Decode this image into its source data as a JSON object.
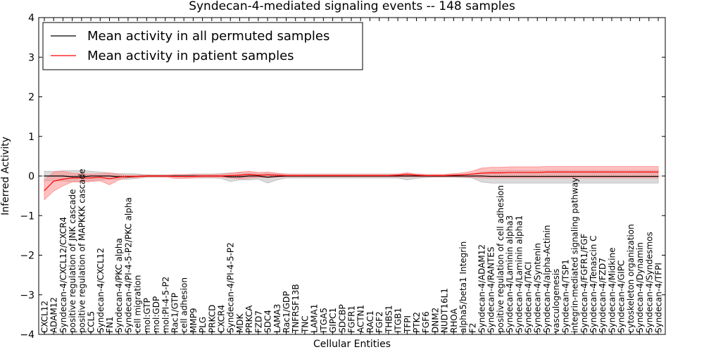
{
  "chart_data": {
    "type": "line",
    "title": "Syndecan-4-mediated signaling events -- 148 samples",
    "xlabel": "Cellular Entities",
    "ylabel": "Inferred Activity",
    "ylim": [
      -4,
      4
    ],
    "yticks": [
      -4,
      -3,
      -2,
      -1,
      0,
      1,
      2,
      3,
      4
    ],
    "ytick_labels": [
      "−4",
      "−3",
      "−2",
      "−1",
      "0",
      "1",
      "2",
      "3",
      "4"
    ],
    "legend_position": "top-left",
    "categories": [
      "CXCL12",
      "ADAM12",
      "Syndecan-4/CXCL12/CXCR4",
      "positive regulation of JNK cascade",
      "positive regulation of MAPKKK cascade",
      "CCL5",
      "Syndecan-4/CXCL12",
      "FN1",
      "Syndecan-4/PKC alpha",
      "Syndecan-4/PI-4-5-P2/PKC alpha",
      "cell migration",
      "mol:GTP",
      "mol:GDP",
      "mol:PI-4-5-P2",
      "Rac1/GTP",
      "cell adhesion",
      "MMP9",
      "PLG",
      "PRKCD",
      "CXCR4",
      "Syndecan-4/PI-4-5-P2",
      "MDK",
      "PRKCA",
      "FZD7",
      "SDC4",
      "LAMA3",
      "Rac1/GDP",
      "TNFRSF13B",
      "TNC",
      "LAMA1",
      "ITGA5",
      "GIPC1",
      "SDCBP",
      "FGFR1",
      "ACTN1",
      "RAC1",
      "FGF2",
      "THBS1",
      "ITGB1",
      "TFPI",
      "PTK2",
      "FGF6",
      "DNM2",
      "NUDT16L1",
      "RHOA",
      "alpha5/beta1 Integrin",
      "F2",
      "Syndecan-4/ADAM12",
      "Syndecan-4/RANTES",
      "positive regulation of cell adhesion",
      "Syndecan-4/Laminin alpha3",
      "Syndecan-4/Laminin alpha1",
      "Syndecan-4/TACI",
      "Syndecan-4/Syntenin",
      "Syndecan-4/alpha-Actinin",
      "vasculogenesis",
      "Syndecan-4/TSP1",
      "integrin-mediated signaling pathway",
      "Syndecan-4/FGFR1/FGF",
      "Syndecan-4/Tenascin C",
      "Syndecan-4/FZD7",
      "Syndecan-4/Midkine",
      "Syndecan-4/GIPC",
      "cytoskeleton organization",
      "Syndecan-4/Dynamin",
      "Syndecan-4/Syndesmos",
      "Syndecan-4/TFPI"
    ],
    "series": [
      {
        "name": "Mean activity in all permuted samples",
        "color": "#000000",
        "band_color": "#bbbbbb",
        "values": [
          0,
          0,
          0,
          -0.02,
          -0.02,
          0,
          0,
          0,
          -0.02,
          -0.02,
          -0.01,
          0,
          0,
          0,
          0,
          0,
          0,
          0,
          0,
          0,
          -0.02,
          -0.02,
          0,
          0,
          -0.03,
          -0.01,
          0,
          0,
          0,
          0,
          0,
          0,
          0,
          0,
          0,
          0,
          0,
          0,
          0,
          0,
          0,
          0,
          0,
          0,
          0,
          0,
          0,
          0,
          -0.01,
          -0.01,
          -0.01,
          -0.01,
          -0.01,
          -0.01,
          -0.01,
          -0.01,
          -0.01,
          -0.01,
          -0.01,
          -0.01,
          -0.01,
          -0.01,
          -0.01,
          -0.01,
          -0.01,
          -0.01,
          -0.01
        ],
        "lower": [
          -0.12,
          -0.12,
          -0.13,
          -0.15,
          -0.14,
          -0.12,
          -0.1,
          -0.08,
          -0.08,
          -0.08,
          -0.06,
          -0.03,
          -0.03,
          -0.03,
          -0.03,
          -0.04,
          -0.05,
          -0.05,
          -0.05,
          -0.06,
          -0.14,
          -0.1,
          -0.1,
          -0.08,
          -0.18,
          -0.1,
          -0.05,
          -0.05,
          -0.05,
          -0.05,
          -0.05,
          -0.05,
          -0.05,
          -0.05,
          -0.05,
          -0.05,
          -0.05,
          -0.05,
          -0.05,
          -0.1,
          -0.06,
          -0.04,
          -0.03,
          -0.03,
          -0.03,
          -0.04,
          -0.05,
          -0.15,
          -0.18,
          -0.18,
          -0.18,
          -0.18,
          -0.18,
          -0.18,
          -0.18,
          -0.18,
          -0.18,
          -0.18,
          -0.18,
          -0.18,
          -0.18,
          -0.18,
          -0.18,
          -0.18,
          -0.18,
          -0.18,
          -0.18
        ],
        "upper": [
          0.12,
          0.12,
          0.13,
          0.14,
          0.14,
          0.12,
          0.1,
          0.08,
          0.06,
          0.06,
          0.05,
          0.03,
          0.03,
          0.03,
          0.03,
          0.04,
          0.05,
          0.05,
          0.05,
          0.06,
          0.08,
          0.08,
          0.08,
          0.06,
          0.07,
          0.06,
          0.05,
          0.05,
          0.05,
          0.05,
          0.05,
          0.05,
          0.05,
          0.05,
          0.05,
          0.05,
          0.05,
          0.05,
          0.05,
          0.06,
          0.05,
          0.04,
          0.03,
          0.03,
          0.03,
          0.04,
          0.05,
          0.1,
          0.12,
          0.14,
          0.14,
          0.14,
          0.14,
          0.14,
          0.14,
          0.14,
          0.14,
          0.14,
          0.14,
          0.14,
          0.14,
          0.14,
          0.14,
          0.14,
          0.14,
          0.14,
          0.14
        ]
      },
      {
        "name": "Mean activity in patient samples",
        "color": "#ff0000",
        "band_color": "#ff8c8c",
        "values": [
          -0.37,
          -0.13,
          -0.08,
          -0.05,
          -0.05,
          -0.05,
          -0.03,
          -0.07,
          -0.03,
          -0.01,
          -0.01,
          0,
          0,
          0,
          -0.01,
          -0.01,
          -0.01,
          0,
          0,
          0,
          0.01,
          0.02,
          0.04,
          0.02,
          0.03,
          0.02,
          0.01,
          0.01,
          0.01,
          0.01,
          0.01,
          0.01,
          0.01,
          0.01,
          0.01,
          0.01,
          0.01,
          0.01,
          0.02,
          0.04,
          0.02,
          0.01,
          0.01,
          0.01,
          0.02,
          0.03,
          0.05,
          0.07,
          0.08,
          0.08,
          0.09,
          0.09,
          0.09,
          0.09,
          0.1,
          0.1,
          0.1,
          0.1,
          0.1,
          0.1,
          0.1,
          0.1,
          0.1,
          0.1,
          0.1,
          0.1,
          0.1
        ],
        "lower": [
          -0.6,
          -0.38,
          -0.25,
          -0.15,
          -0.15,
          -0.14,
          -0.12,
          -0.22,
          -0.1,
          -0.05,
          -0.04,
          -0.02,
          -0.02,
          -0.02,
          -0.06,
          -0.06,
          -0.05,
          -0.03,
          -0.03,
          -0.03,
          -0.05,
          -0.07,
          -0.05,
          -0.04,
          -0.04,
          -0.03,
          -0.02,
          -0.02,
          -0.02,
          -0.02,
          -0.02,
          -0.02,
          -0.02,
          -0.02,
          -0.02,
          -0.02,
          -0.02,
          -0.02,
          -0.02,
          -0.02,
          -0.02,
          -0.02,
          -0.02,
          -0.02,
          -0.02,
          -0.02,
          -0.03,
          -0.05,
          -0.05,
          -0.05,
          -0.05,
          -0.05,
          -0.05,
          -0.05,
          -0.05,
          -0.05,
          -0.05,
          -0.05,
          -0.05,
          -0.05,
          -0.05,
          -0.05,
          -0.05,
          -0.05,
          -0.05,
          -0.05,
          -0.05
        ],
        "upper": [
          -0.1,
          0.1,
          0.12,
          0.07,
          0.06,
          0.05,
          0.06,
          0.08,
          0.04,
          0.02,
          0.02,
          0.02,
          0.02,
          0.02,
          0.04,
          0.04,
          0.04,
          0.03,
          0.03,
          0.04,
          0.07,
          0.1,
          0.12,
          0.09,
          0.1,
          0.07,
          0.05,
          0.04,
          0.04,
          0.04,
          0.04,
          0.04,
          0.04,
          0.04,
          0.04,
          0.04,
          0.04,
          0.04,
          0.05,
          0.08,
          0.05,
          0.04,
          0.04,
          0.04,
          0.06,
          0.08,
          0.12,
          0.2,
          0.22,
          0.22,
          0.23,
          0.23,
          0.23,
          0.23,
          0.24,
          0.24,
          0.24,
          0.24,
          0.24,
          0.24,
          0.24,
          0.24,
          0.24,
          0.24,
          0.24,
          0.24,
          0.24
        ]
      }
    ]
  }
}
